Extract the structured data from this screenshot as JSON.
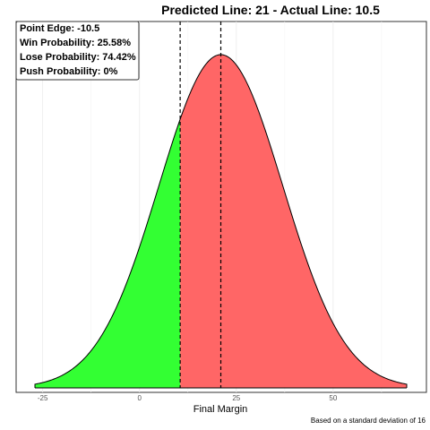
{
  "chart_data": {
    "type": "area",
    "title": "Predicted Line: 21  -  Actual Line: 10.5",
    "xlabel": "Final Margin",
    "ylabel": "",
    "caption": "Based on a standard deviation of 16",
    "xlim": [
      -27,
      69
    ],
    "x_ticks": [
      -25,
      0,
      25,
      50
    ],
    "x_tick_labels": [
      "-25",
      "0",
      "25",
      "50"
    ],
    "distribution": {
      "mean": 21,
      "sd": 16
    },
    "vlines": [
      10.5,
      21
    ],
    "grid": "vertical",
    "legend": "none",
    "regions": [
      {
        "from": -27,
        "to": 10.5,
        "color": "#33ff33",
        "label": "Win"
      },
      {
        "from": 10.5,
        "to": 69,
        "color": "#ff6666",
        "label": "Lose"
      }
    ],
    "annotations": [
      "Point Edge: -10.5",
      "Win Probability: 25.58%",
      "Lose Probability: 74.42%",
      "Push Probability: 0%"
    ],
    "annotation_position": "top-left"
  }
}
